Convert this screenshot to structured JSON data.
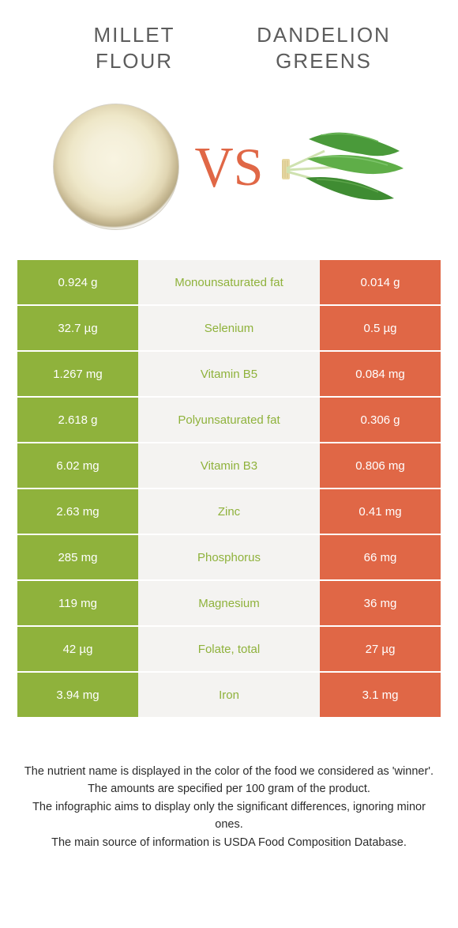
{
  "colors": {
    "left": "#8fb23c",
    "right": "#e06746",
    "mid_bg": "#f4f3f1",
    "header_text": "#5c5c5c",
    "vs_text": "#e06746"
  },
  "header": {
    "left_title": "MILLET\nFLOUR",
    "right_title": "DANDELION\nGREENS",
    "vs": "VS"
  },
  "rows": [
    {
      "left": "0.924 g",
      "nutrient": "Monounsaturated fat",
      "right": "0.014 g",
      "winner": "left"
    },
    {
      "left": "32.7 µg",
      "nutrient": "Selenium",
      "right": "0.5 µg",
      "winner": "left"
    },
    {
      "left": "1.267 mg",
      "nutrient": "Vitamin B5",
      "right": "0.084 mg",
      "winner": "left"
    },
    {
      "left": "2.618 g",
      "nutrient": "Polyunsaturated fat",
      "right": "0.306 g",
      "winner": "left"
    },
    {
      "left": "6.02 mg",
      "nutrient": "Vitamin B3",
      "right": "0.806 mg",
      "winner": "left"
    },
    {
      "left": "2.63 mg",
      "nutrient": "Zinc",
      "right": "0.41 mg",
      "winner": "left"
    },
    {
      "left": "285 mg",
      "nutrient": "Phosphorus",
      "right": "66 mg",
      "winner": "left"
    },
    {
      "left": "119 mg",
      "nutrient": "Magnesium",
      "right": "36 mg",
      "winner": "left"
    },
    {
      "left": "42 µg",
      "nutrient": "Folate, total",
      "right": "27 µg",
      "winner": "left"
    },
    {
      "left": "3.94 mg",
      "nutrient": "Iron",
      "right": "3.1 mg",
      "winner": "left"
    }
  ],
  "footer": {
    "line1": "The nutrient name is displayed in the color of the food we considered as 'winner'.",
    "line2": "The amounts are specified per 100 gram of the product.",
    "line3": "The infographic aims to display only the significant differences, ignoring minor ones.",
    "line4": "The main source of information is USDA Food Composition Database."
  }
}
